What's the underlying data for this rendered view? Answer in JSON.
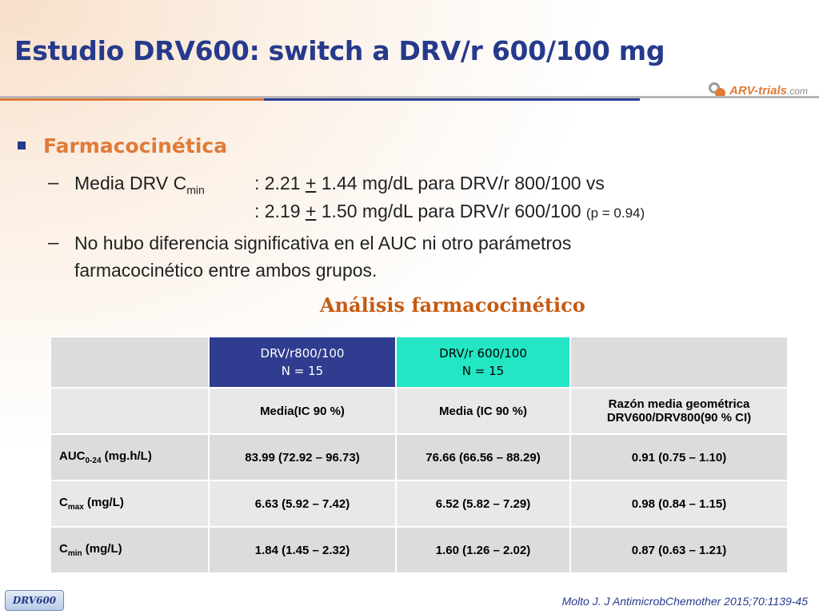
{
  "title": "Estudio DRV600: switch a DRV/r 600/100 mg",
  "logo": {
    "brand": "ARV-trials",
    "suffix": ".com"
  },
  "section": {
    "heading": "Farmacocinética",
    "item1": {
      "label_prefix": "Media DRV C",
      "label_sub": "min",
      "line1": {
        "prefix": ": 2.21 ",
        "pm": "+",
        "suffix": " 1.44 mg/dL para DRV/r 800/100 vs"
      },
      "line2": {
        "prefix": ": 2.19 ",
        "pm": "+",
        "suffix": " 1.50 mg/dL para DRV/r 600/100 ",
        "pvalue": "(p = 0.94)"
      }
    },
    "item2": {
      "line1": "No hubo diferencia significativa en el AUC ni otro parámetros",
      "line2": "farmacocinético entre ambos grupos."
    }
  },
  "table_title": "Análisis farmacocinético",
  "table": {
    "group1": {
      "name": "DRV/r800/100",
      "n": "N = 15"
    },
    "group2": {
      "name": "DRV/r 600/100",
      "n": "N = 15"
    },
    "subheaders": {
      "col1": "Media(IC 90 %)",
      "col2": "Media (IC 90 %)",
      "col3_line1": "Razón media geométrica",
      "col3_line2": "DRV600/DRV800(90 % CI)"
    },
    "rows": [
      {
        "label": "AUC",
        "sub": "0-24",
        "unit": " (mg.h/L)",
        "v1": "83.99 (72.92 – 96.73)",
        "v2": "76.66 (66.56 – 88.29)",
        "v3": "0.91 (0.75 – 1.10)"
      },
      {
        "label": "C",
        "sub": "max",
        "unit": " (mg/L)",
        "v1": "6.63 (5.92 – 7.42)",
        "v2": "6.52 (5.82 – 7.29)",
        "v3": "0.98 (0.84 – 1.15)"
      },
      {
        "label": "C",
        "sub": "min",
        "unit": " (mg/L)",
        "v1": "1.84 (1.45 – 2.32)",
        "v2": "1.60 (1.26 – 2.02)",
        "v3": "0.87 (0.63 – 1.21)"
      }
    ]
  },
  "footer": {
    "tag": "DRV600",
    "reference": "Molto J. J AntimicrobChemother 2015;70:1139-45"
  }
}
